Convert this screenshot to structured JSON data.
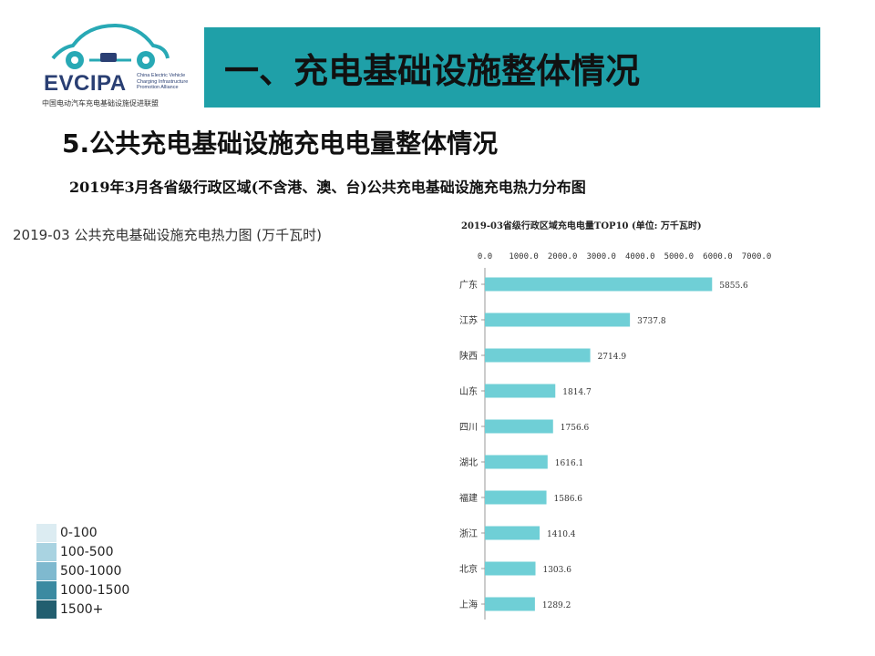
{
  "logo": {
    "name": "EVCIPA",
    "english_lines": [
      "China Electric Vehicle",
      "Charging Infrastructure",
      "Promotion Alliance"
    ],
    "chinese_name": "中国电动汽车充电基础设施促进联盟"
  },
  "header": {
    "title": "一、充电基础设施整体情况"
  },
  "section": {
    "title": "5.公共充电基础设施充电电量整体情况"
  },
  "figure": {
    "title": "2019年3月各省级行政区域(不含港、澳、台)公共充电基础设施充电热力分布图"
  },
  "map": {
    "title": "2019-03 公共充电基础设施充电热力图 (万千瓦时)",
    "legend": [
      {
        "label": "0-100",
        "color": "#dcecf2"
      },
      {
        "label": "100-500",
        "color": "#a9d3e1"
      },
      {
        "label": "500-1000",
        "color": "#7fb9cf"
      },
      {
        "label": "1000-1500",
        "color": "#3b8aa1"
      },
      {
        "label": "1500+",
        "color": "#225e6f"
      }
    ]
  },
  "chart_data": {
    "type": "bar",
    "orientation": "horizontal",
    "title": "2019-03省级行政区域充电电量TOP10 (单位: 万千瓦时)",
    "categories": [
      "广东",
      "江苏",
      "陕西",
      "山东",
      "四川",
      "湖北",
      "福建",
      "浙江",
      "北京",
      "上海"
    ],
    "values": [
      5855.6,
      3737.8,
      2714.9,
      1814.7,
      1756.6,
      1616.1,
      1586.6,
      1410.4,
      1303.6,
      1289.2
    ],
    "value_labels": [
      "5855.6",
      "3737.8",
      "2714.9",
      "1814.7",
      "1756.6",
      "1616.1",
      "1586.6",
      "1410.4",
      "1303.6",
      "1289.2"
    ],
    "ticks": [
      "0.0",
      "1000.0",
      "2000.0",
      "3000.0",
      "4000.0",
      "5000.0",
      "6000.0",
      "7000.0"
    ],
    "xlim": [
      0,
      7000
    ],
    "axis_position": "top",
    "bar_color": "#6fcfd6"
  }
}
